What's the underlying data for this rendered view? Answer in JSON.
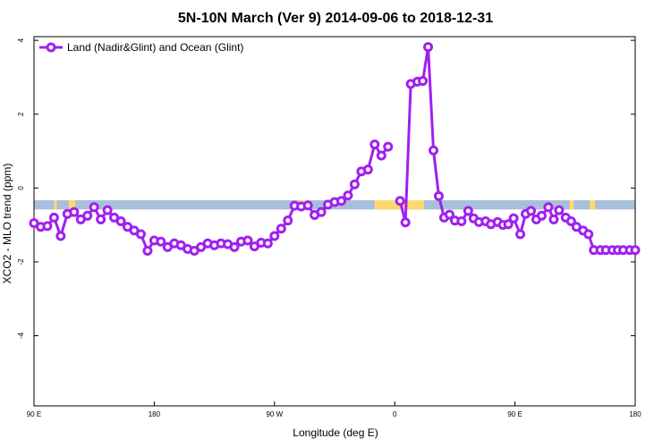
{
  "chart_data": {
    "type": "line",
    "title": "5N-10N March (Ver 9)   2014-09-06 to 2018-12-31",
    "xlabel": "Longitude (deg E)",
    "ylabel": "XCO2 - MLO trend (ppm)",
    "xlim": [
      90,
      450
    ],
    "ylim": [
      -5.9,
      4.1
    ],
    "x_ticks": [
      {
        "value": 90,
        "label": "90 E"
      },
      {
        "value": 180,
        "label": "180"
      },
      {
        "value": 270,
        "label": "90 W"
      },
      {
        "value": 360,
        "label": "0"
      },
      {
        "value": 450,
        "label": "90 E"
      },
      {
        "value": 540,
        "label": "180"
      }
    ],
    "y_ticks": [
      {
        "value": 4,
        "label": "4"
      },
      {
        "value": 2,
        "label": "2"
      },
      {
        "value": 0,
        "label": "0"
      },
      {
        "value": -2,
        "label": "-2"
      },
      {
        "value": -4,
        "label": "-4"
      }
    ],
    "legend": {
      "position": "top-left",
      "entries": [
        "Land (Nadir&Glint) and Ocean (Glint)"
      ]
    },
    "colors": {
      "series": "#a020f0",
      "ocean_band": "#a8bfdc",
      "land_band": "#ffd970"
    },
    "series": [
      {
        "name": "Land (Nadir&Glint) and Ocean (Glint)",
        "segments": [
          {
            "x": [
              90,
              95,
              100,
              105,
              110,
              115,
              120,
              125,
              130,
              135,
              140,
              145,
              150,
              155,
              160,
              165,
              170,
              175,
              180,
              185,
              190,
              195,
              200,
              205,
              210,
              215,
              220,
              225,
              230,
              235,
              240,
              245,
              250,
              255,
              260,
              265,
              270,
              275,
              280,
              285,
              290,
              295,
              300,
              305,
              310,
              315,
              320,
              325,
              330,
              335,
              340,
              345,
              350,
              355,
              360
            ],
            "y": [
              -0.95,
              -1.05,
              -1.03,
              -0.8,
              -1.3,
              -0.7,
              -0.65,
              -0.85,
              -0.75,
              -0.52,
              -0.85,
              -0.6,
              -0.8,
              -0.9,
              -1.05,
              -1.15,
              -1.25,
              -1.7,
              -1.42,
              -1.45,
              -1.6,
              -1.5,
              -1.55,
              -1.65,
              -1.7,
              -1.6,
              -1.5,
              -1.55,
              -1.5,
              -1.52,
              -1.6,
              -1.45,
              -1.42,
              -1.58,
              -1.48,
              -1.5,
              -1.3,
              -1.1,
              -0.88,
              -0.48,
              -0.5,
              -0.47,
              -0.73,
              -0.65,
              -0.45,
              -0.38,
              -0.35,
              -0.2,
              0.1,
              0.45,
              0.5,
              1.18,
              0.88,
              1.12,
              null
            ]
          },
          {
            "x": [
              363,
              366,
              369,
              374,
              379,
              382,
              387,
              392,
              397,
              402,
              407,
              412,
              417,
              422,
              427,
              432,
              437,
              442,
              447,
              450
            ],
            "y": [
              -0.35,
              -0.93,
              2.85,
              2.9,
              2.92,
              3.85,
              1.05,
              -0.2,
              -0.78,
              -0.75,
              -0.88,
              -0.9,
              -0.65,
              -0.85,
              -0.9,
              -0.9,
              -0.9,
              -0.95,
              -0.98,
              -1.0
            ]
          }
        ]
      }
    ]
  },
  "render_note_series": [
    {
      "x": [
        90,
        95,
        100,
        105,
        110,
        115,
        120,
        125,
        130,
        135,
        140,
        145,
        150,
        155,
        160,
        165,
        170,
        175,
        180,
        185,
        190,
        195,
        200,
        205,
        210,
        215,
        220,
        225,
        230,
        235,
        240,
        245,
        250,
        255,
        260,
        265,
        270,
        275,
        280,
        285,
        290,
        295,
        300,
        305,
        310,
        315,
        320,
        325,
        330,
        335,
        340,
        345,
        350,
        355
      ],
      "y": [
        -0.95,
        -1.05,
        -1.03,
        -0.8,
        -1.3,
        -0.7,
        -0.65,
        -0.85,
        -0.75,
        -0.52,
        -0.85,
        -0.6,
        -0.8,
        -0.9,
        -1.05,
        -1.15,
        -1.25,
        -1.7,
        -1.42,
        -1.45,
        -1.6,
        -1.5,
        -1.55,
        -1.65,
        -1.7,
        -1.6,
        -1.5,
        -1.55,
        -1.5,
        -1.52,
        -1.6,
        -1.45,
        -1.42,
        -1.58,
        -1.48,
        -1.5,
        -1.3,
        -1.1,
        -0.88,
        -0.48,
        -0.5,
        -0.47,
        -0.73,
        -0.65,
        -0.45,
        -0.38,
        -0.35,
        -0.2,
        0.1,
        0.45,
        0.5,
        1.18,
        0.88,
        1.12
      ]
    },
    {
      "x": [
        364,
        368,
        372,
        377,
        381,
        385,
        389,
        393,
        397,
        401,
        405,
        410,
        415,
        419,
        423,
        428,
        432,
        437,
        441,
        445,
        449,
        454,
        458,
        462,
        466,
        470,
        475,
        479,
        483,
        488,
        492,
        496,
        501,
        505,
        509,
        514,
        518,
        523,
        527,
        531,
        536,
        540
      ],
      "y": [
        -0.35,
        -0.93,
        2.82,
        2.88,
        2.9,
        3.82,
        1.02,
        -0.22,
        -0.8,
        -0.72,
        -0.88,
        -0.9,
        -0.62,
        -0.82,
        -0.92,
        -0.9,
        -0.98,
        -0.92,
        -1.0,
        -0.98,
        -0.82,
        -1.25,
        -0.7,
        -0.62,
        -0.85,
        -0.75,
        -0.52,
        -0.85,
        -0.6,
        -0.8,
        -0.9,
        -1.05,
        -1.15,
        -1.25,
        -1.68,
        -1.68,
        -1.68,
        -1.68,
        -1.68,
        -1.68,
        -1.68,
        -1.68
      ]
    }
  ]
}
